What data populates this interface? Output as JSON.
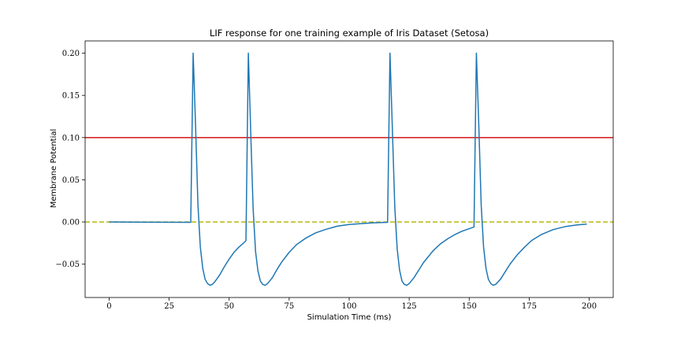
{
  "chart_data": {
    "type": "line",
    "title": "LIF response for one training example of Iris Dataset (Setosa)",
    "xlabel": "Simulation Time (ms)",
    "ylabel": "Membrane Potential",
    "xlim": [
      -10,
      210
    ],
    "ylim": [
      -0.0895,
      0.2145
    ],
    "x_ticks": [
      0,
      25,
      50,
      75,
      100,
      125,
      150,
      175,
      200
    ],
    "y_ticks": [
      -0.05,
      0.0,
      0.05,
      0.1,
      0.15,
      0.2
    ],
    "y_tick_labels": [
      "−0.05",
      "0.00",
      "0.05",
      "0.10",
      "0.15",
      "0.20"
    ],
    "grid": false,
    "hlines": [
      {
        "y": 0.1,
        "color": "#d62728",
        "style": "solid"
      },
      {
        "y": 0.0,
        "color": "#bcbd22",
        "style": "dashed"
      }
    ],
    "series": [
      {
        "color": "#1f77b4",
        "points": [
          [
            0,
            0.0
          ],
          [
            10,
            -0.0002
          ],
          [
            20,
            -0.0003
          ],
          [
            34,
            -0.0004
          ],
          [
            35,
            0.2
          ],
          [
            36,
            0.115
          ],
          [
            37,
            0.02
          ],
          [
            38,
            -0.03
          ],
          [
            39,
            -0.055
          ],
          [
            40,
            -0.068
          ],
          [
            41,
            -0.073
          ],
          [
            42,
            -0.075
          ],
          [
            43,
            -0.074
          ],
          [
            44,
            -0.071
          ],
          [
            46,
            -0.063
          ],
          [
            48,
            -0.053
          ],
          [
            50,
            -0.044
          ],
          [
            52,
            -0.036
          ],
          [
            54,
            -0.03
          ],
          [
            56,
            -0.025
          ],
          [
            57,
            -0.022
          ],
          [
            58,
            0.2
          ],
          [
            59,
            0.105
          ],
          [
            60,
            0.015
          ],
          [
            61,
            -0.035
          ],
          [
            62,
            -0.058
          ],
          [
            63,
            -0.07
          ],
          [
            64,
            -0.074
          ],
          [
            65,
            -0.075
          ],
          [
            66,
            -0.073
          ],
          [
            68,
            -0.066
          ],
          [
            70,
            -0.056
          ],
          [
            72,
            -0.047
          ],
          [
            75,
            -0.036
          ],
          [
            78,
            -0.027
          ],
          [
            82,
            -0.019
          ],
          [
            86,
            -0.013
          ],
          [
            90,
            -0.009
          ],
          [
            95,
            -0.005
          ],
          [
            100,
            -0.003
          ],
          [
            105,
            -0.002
          ],
          [
            110,
            -0.001
          ],
          [
            116,
            -0.0005
          ],
          [
            117,
            0.2
          ],
          [
            118,
            0.11
          ],
          [
            119,
            0.018
          ],
          [
            120,
            -0.032
          ],
          [
            121,
            -0.057
          ],
          [
            122,
            -0.07
          ],
          [
            123,
            -0.074
          ],
          [
            124,
            -0.075
          ],
          [
            125,
            -0.073
          ],
          [
            127,
            -0.066
          ],
          [
            129,
            -0.057
          ],
          [
            131,
            -0.048
          ],
          [
            133,
            -0.041
          ],
          [
            135,
            -0.034
          ],
          [
            138,
            -0.026
          ],
          [
            141,
            -0.02
          ],
          [
            144,
            -0.015
          ],
          [
            147,
            -0.011
          ],
          [
            150,
            -0.008
          ],
          [
            152,
            -0.006
          ],
          [
            153,
            0.2
          ],
          [
            154,
            0.115
          ],
          [
            155,
            0.02
          ],
          [
            156,
            -0.03
          ],
          [
            157,
            -0.055
          ],
          [
            158,
            -0.068
          ],
          [
            159,
            -0.073
          ],
          [
            160,
            -0.075
          ],
          [
            161,
            -0.074
          ],
          [
            163,
            -0.068
          ],
          [
            165,
            -0.059
          ],
          [
            167,
            -0.05
          ],
          [
            170,
            -0.039
          ],
          [
            173,
            -0.03
          ],
          [
            176,
            -0.022
          ],
          [
            180,
            -0.015
          ],
          [
            185,
            -0.009
          ],
          [
            190,
            -0.0055
          ],
          [
            195,
            -0.0035
          ],
          [
            199,
            -0.0025
          ]
        ]
      }
    ]
  }
}
